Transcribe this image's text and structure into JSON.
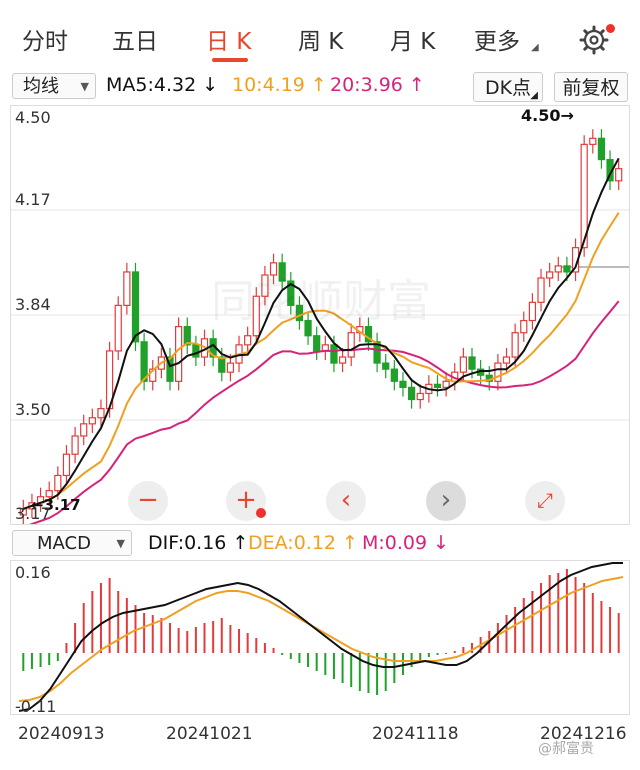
{
  "tabs": [
    {
      "label": "分时",
      "active": false
    },
    {
      "label": "五日",
      "active": false
    },
    {
      "label": "日 K",
      "active": true
    },
    {
      "label": "周 K",
      "active": false
    },
    {
      "label": "月 K",
      "active": false
    },
    {
      "label": "更多",
      "active": false
    }
  ],
  "toolbar": {
    "ma_select": "均线",
    "ma5": "MA5:4.32",
    "ma10": "10:4.19",
    "ma20": "20:3.96",
    "dk_button": "DK点",
    "fq_button": "前复权"
  },
  "kchart": {
    "price_levels": [
      "4.50",
      "4.17",
      "3.84",
      "3.50",
      "3.17"
    ],
    "high_mark": "4.50→",
    "low_mark": "←3.17",
    "watermark": "同花顺财富"
  },
  "macd": {
    "select": "MACD",
    "dif": "DIF:0.16",
    "dea": "DEA:0.12",
    "m": "M:0.09",
    "top_label": "0.16",
    "bottom_label": "-0.11"
  },
  "dates": [
    "20240913",
    "20241021",
    "20241118",
    "20241216"
  ],
  "footer_watermark": "@郝富贵",
  "colors": {
    "up": "#e23b3b",
    "down": "#1fa12a",
    "ma5": "#111111",
    "ma10": "#f0a020",
    "ma20": "#d6237a",
    "accent": "#e8472e"
  }
}
